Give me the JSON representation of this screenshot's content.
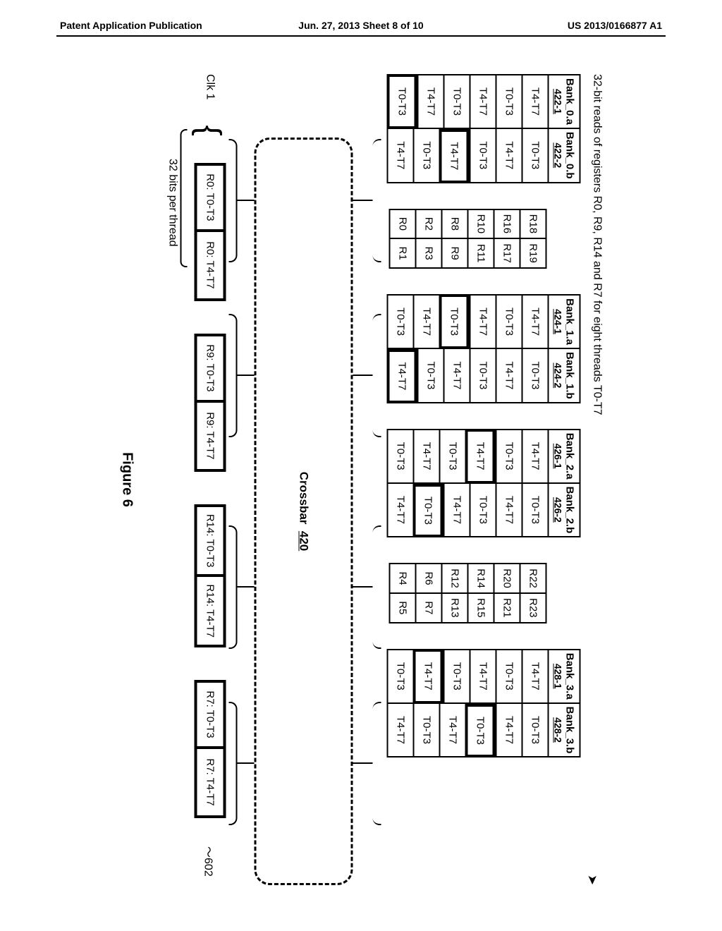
{
  "header": {
    "left": "Patent Application Publication",
    "center": "Jun. 27, 2013  Sheet 8 of 10",
    "right": "US 2013/0166877 A1"
  },
  "title": "32-bit reads of registers R0, R9, R14 and R7 for eight threads T0-T7",
  "banks": [
    {
      "a": {
        "name": "Bank_0.a",
        "ref": "422-1"
      },
      "b": {
        "name": "Bank_0.b",
        "ref": "422-2"
      },
      "regs_a": [
        "R18",
        "R16",
        "R10",
        "R8",
        "R2",
        "R0"
      ],
      "regs_b": [
        "R19",
        "R17",
        "R11",
        "R9",
        "R3",
        "R1"
      ],
      "cells_a": [
        "T4-T7",
        "T0-T3",
        "T4-T7",
        "T0-T3",
        "T4-T7",
        "T0-T3"
      ],
      "cells_b": [
        "T0-T3",
        "T4-T7",
        "T0-T3",
        "T4-T7",
        "T0-T3",
        "T4-T7"
      ],
      "highlight_a": 5,
      "highlight_b": 3
    },
    {
      "a": {
        "name": "Bank_1.a",
        "ref": "424-1"
      },
      "b": {
        "name": "Bank_1.b",
        "ref": "424-2"
      },
      "cells_a": [
        "T4-T7",
        "T0-T3",
        "T4-T7",
        "T0-T3",
        "T4-T7",
        "T0-T3"
      ],
      "cells_b": [
        "T0-T3",
        "T4-T7",
        "T0-T3",
        "T4-T7",
        "T0-T3",
        "T4-T7"
      ],
      "highlight_a": 3,
      "highlight_b": 5
    },
    {
      "a": {
        "name": "Bank_2.a",
        "ref": "426-1"
      },
      "b": {
        "name": "Bank_2.b",
        "ref": "426-2"
      },
      "regs_a": [
        "R22",
        "R20",
        "R14",
        "R12",
        "R6",
        "R4"
      ],
      "regs_b": [
        "R23",
        "R21",
        "R15",
        "R13",
        "R7",
        "R5"
      ],
      "cells_a": [
        "T4-T7",
        "T0-T3",
        "T4-T7",
        "T0-T3",
        "T4-T7",
        "T0-T3"
      ],
      "cells_b": [
        "T0-T3",
        "T4-T7",
        "T0-T3",
        "T4-T7",
        "T0-T3",
        "T4-T7"
      ],
      "highlight_a": 2,
      "highlight_b": 4
    },
    {
      "a": {
        "name": "Bank_3.a",
        "ref": "428-1"
      },
      "b": {
        "name": "Bank_3.b",
        "ref": "428-2"
      },
      "cells_a": [
        "T4-T7",
        "T0-T3",
        "T4-T7",
        "T0-T3",
        "T4-T7",
        "T0-T3"
      ],
      "cells_b": [
        "T0-T3",
        "T4-T7",
        "T0-T3",
        "T4-T7",
        "T0-T3",
        "T4-T7"
      ],
      "highlight_a": 4,
      "highlight_b": 2
    }
  ],
  "crossbar": {
    "label": "Crossbar",
    "ref": "420"
  },
  "clk_label": "Clk 1",
  "outputs": [
    [
      "R0: T0-T3",
      "R0: T4-T7"
    ],
    [
      "R9: T0-T3",
      "R9: T4-T7"
    ],
    [
      "R14: T0-T3",
      "R14: T4-T7"
    ],
    [
      "R7: T0-T3",
      "R7: T4-T7"
    ]
  ],
  "ref_602": "602",
  "sub_label": "32 bits per thread",
  "figure_caption": "Figure 6",
  "colors": {
    "bg": "#ffffff",
    "fg": "#000000"
  }
}
